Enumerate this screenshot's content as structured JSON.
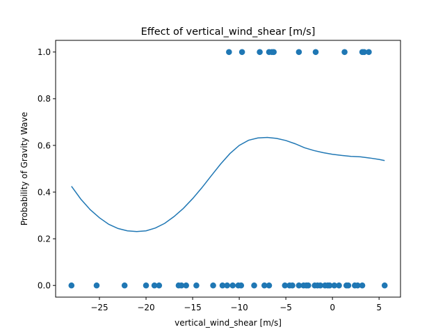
{
  "chart_data": {
    "type": "scatter",
    "title": "Effect of vertical_wind_shear [m/s]",
    "xlabel": "vertical_wind_shear [m/s]",
    "ylabel": "Probability of Gravity Wave",
    "xlim": [
      -29.7,
      7.3
    ],
    "ylim": [
      -0.05,
      1.05
    ],
    "xticks": [
      -25,
      -20,
      -15,
      -10,
      -5,
      0,
      5
    ],
    "yticks": [
      0.0,
      0.2,
      0.4,
      0.6,
      0.8,
      1.0
    ],
    "xtick_labels": [
      "−25",
      "−20",
      "−15",
      "−10",
      "−5",
      "0",
      "5"
    ],
    "ytick_labels": [
      "0.0",
      "0.2",
      "0.4",
      "0.6",
      "0.8",
      "1.0"
    ],
    "grid": false,
    "colors": {
      "series": "#1f77b4"
    },
    "series": [
      {
        "type": "scatter",
        "points": [
          [
            -28.0,
            0
          ],
          [
            -25.3,
            0
          ],
          [
            -22.3,
            0
          ],
          [
            -20.0,
            0
          ],
          [
            -19.1,
            0
          ],
          [
            -18.6,
            0
          ],
          [
            -16.5,
            0
          ],
          [
            -16.2,
            0
          ],
          [
            -15.7,
            0
          ],
          [
            -14.6,
            0
          ],
          [
            -12.8,
            0
          ],
          [
            -11.8,
            0
          ],
          [
            -11.3,
            0
          ],
          [
            -10.7,
            0
          ],
          [
            -10.1,
            0
          ],
          [
            -9.8,
            0
          ],
          [
            -8.4,
            0
          ],
          [
            -7.3,
            0
          ],
          [
            -6.8,
            0
          ],
          [
            -5.1,
            0
          ],
          [
            -4.6,
            0
          ],
          [
            -4.3,
            0
          ],
          [
            -3.6,
            0
          ],
          [
            -3.1,
            0
          ],
          [
            -2.8,
            0
          ],
          [
            -2.6,
            0
          ],
          [
            -1.9,
            0
          ],
          [
            -1.6,
            0
          ],
          [
            -1.3,
            0
          ],
          [
            -0.8,
            0
          ],
          [
            -0.5,
            0
          ],
          [
            -0.3,
            0
          ],
          [
            0.2,
            0
          ],
          [
            0.7,
            0
          ],
          [
            1.5,
            0
          ],
          [
            1.7,
            0
          ],
          [
            2.4,
            0
          ],
          [
            2.7,
            0
          ],
          [
            3.2,
            0
          ],
          [
            5.6,
            0
          ],
          [
            -11.1,
            1
          ],
          [
            -9.7,
            1
          ],
          [
            -7.8,
            1
          ],
          [
            -6.8,
            1
          ],
          [
            -6.5,
            1
          ],
          [
            -6.3,
            1
          ],
          [
            -3.6,
            1
          ],
          [
            -1.8,
            1
          ],
          [
            1.3,
            1
          ],
          [
            3.2,
            1
          ],
          [
            3.4,
            1
          ],
          [
            3.9,
            1
          ]
        ]
      },
      {
        "type": "line",
        "points": [
          [
            -28.0,
            0.425
          ],
          [
            -27.0,
            0.37
          ],
          [
            -26.0,
            0.325
          ],
          [
            -25.0,
            0.29
          ],
          [
            -24.0,
            0.262
          ],
          [
            -23.0,
            0.244
          ],
          [
            -22.0,
            0.234
          ],
          [
            -21.0,
            0.231
          ],
          [
            -20.0,
            0.234
          ],
          [
            -19.0,
            0.246
          ],
          [
            -18.0,
            0.266
          ],
          [
            -17.0,
            0.295
          ],
          [
            -16.0,
            0.33
          ],
          [
            -15.0,
            0.372
          ],
          [
            -14.0,
            0.419
          ],
          [
            -13.0,
            0.47
          ],
          [
            -12.0,
            0.52
          ],
          [
            -11.0,
            0.565
          ],
          [
            -10.0,
            0.6
          ],
          [
            -9.0,
            0.622
          ],
          [
            -8.0,
            0.632
          ],
          [
            -7.0,
            0.634
          ],
          [
            -6.0,
            0.63
          ],
          [
            -5.0,
            0.621
          ],
          [
            -4.0,
            0.607
          ],
          [
            -3.0,
            0.59
          ],
          [
            -2.0,
            0.578
          ],
          [
            -1.0,
            0.569
          ],
          [
            0.0,
            0.562
          ],
          [
            1.0,
            0.557
          ],
          [
            2.0,
            0.553
          ],
          [
            3.0,
            0.551
          ],
          [
            4.0,
            0.546
          ],
          [
            5.0,
            0.54
          ],
          [
            5.6,
            0.535
          ]
        ]
      }
    ]
  }
}
